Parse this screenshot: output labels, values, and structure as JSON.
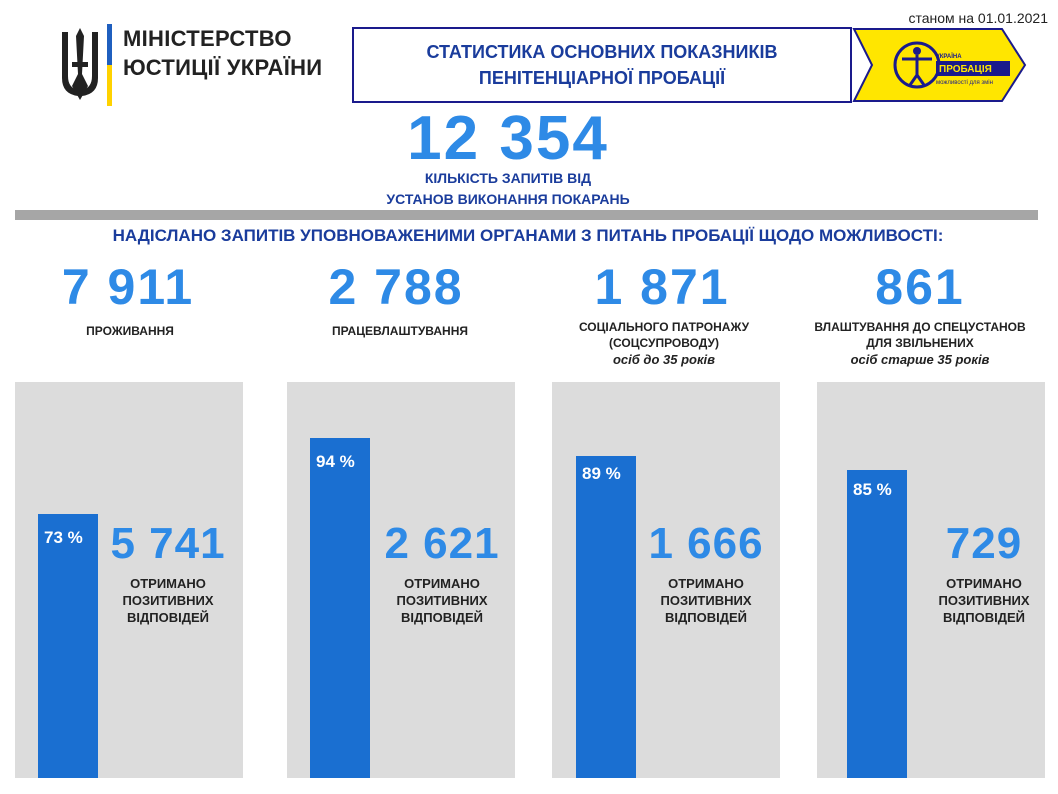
{
  "header": {
    "date": "станом на 01.01.2021",
    "ministry_line1": "МІНІСТЕРСТВО",
    "ministry_line2": "ЮСТИЦІЇ УКРАЇНИ",
    "title_line1": "СТАТИСТИКА ОСНОВНИХ ПОКАЗНИКІВ",
    "title_line2": "ПЕНІТЕНЦІАРНОЇ ПРОБАЦІЇ",
    "logo_top": "УКРАЇНА",
    "logo_main": "ПРОБАЦІЯ",
    "logo_bottom": "можливості для змін"
  },
  "total": {
    "value": "12 354",
    "label_line1": "КІЛЬКІСТЬ ЗАПИТІВ ВІД",
    "label_line2": "УСТАНОВ ВИКОНАННЯ ПОКАРАНЬ"
  },
  "question": "НАДІСЛАНО ЗАПИТІВ УПОВНОВАЖЕНИМИ ОРГАНАМИ З ПИТАНЬ ПРОБАЦІЇ  ЩОДО МОЖЛИВОСТІ:",
  "colors": {
    "accent": "#2e8ae6",
    "bar": "#1a6fd1",
    "panel": "#dcdcdc",
    "header_text": "#1a3c9c",
    "logo_yellow": "#ffe600"
  },
  "chart_data": {
    "type": "bar",
    "categories": [
      "проживання",
      "працевлаштування",
      "соціального патронажу (соцсупроводу) осіб до 35 років",
      "влаштування до спецустанов для звільнених осіб старше 35 років"
    ],
    "requests": [
      7911,
      2788,
      1871,
      861
    ],
    "positive": [
      5741,
      2621,
      1666,
      729
    ],
    "percent": [
      73,
      94,
      89,
      85
    ],
    "ylim": [
      0,
      100
    ],
    "items": [
      {
        "requests_text": "7 911",
        "label_line1": "ПРОЖИВАННЯ",
        "label_line2": "",
        "label_italic": "",
        "pct_text": "73 %",
        "positive_text": "5 741",
        "res_line1": "ОТРИМАНО",
        "res_line2": "ПОЗИТИВНИХ",
        "res_line3": "ВІДПОВІДЕЙ"
      },
      {
        "requests_text": "2 788",
        "label_line1": "ПРАЦЕВЛАШТУВАННЯ",
        "label_line2": "",
        "label_italic": "",
        "pct_text": "94 %",
        "positive_text": "2 621",
        "res_line1": "ОТРИМАНО",
        "res_line2": "ПОЗИТИВНИХ",
        "res_line3": "ВІДПОВІДЕЙ"
      },
      {
        "requests_text": "1 871",
        "label_line1": "СОЦІАЛЬНОГО ПАТРОНАЖУ",
        "label_line2": "(СОЦСУПРОВОДУ)",
        "label_italic": "осіб до 35 років",
        "pct_text": "89 %",
        "positive_text": "1 666",
        "res_line1": "ОТРИМАНО",
        "res_line2": "ПОЗИТИВНИХ",
        "res_line3": "ВІДПОВІДЕЙ"
      },
      {
        "requests_text": "861",
        "label_line1": "ВЛАШТУВАННЯ ДО СПЕЦУСТАНОВ",
        "label_line2": "ДЛЯ ЗВІЛЬНЕНИХ",
        "label_italic": "осіб старше 35 років",
        "pct_text": "85 %",
        "positive_text": "729",
        "res_line1": "ОТРИМАНО",
        "res_line2": "ПОЗИТИВНИХ",
        "res_line3": "ВІДПОВІДЕЙ"
      }
    ]
  }
}
